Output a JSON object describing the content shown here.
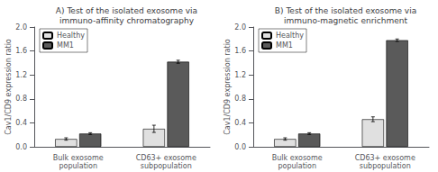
{
  "chart_data": [
    {
      "type": "bar",
      "title": "A) Test of the isolated exosome via\nimmuno-affinity chromatography",
      "categories": [
        "Bulk exosome\npopulation",
        "CD63+ exosome\nsubpopulation"
      ],
      "series": [
        {
          "name": "Healthy",
          "color": "#e0e0e0",
          "values": [
            0.13,
            0.3
          ],
          "errors": [
            0.02,
            0.06
          ]
        },
        {
          "name": "MM1",
          "color": "#5a5a5a",
          "values": [
            0.22,
            1.42
          ],
          "errors": [
            0.015,
            0.025
          ]
        }
      ],
      "ylabel": "Cav1/CD9 expression ratio",
      "ylim": [
        0,
        2.0
      ],
      "yticks": [
        {
          "value": 0.0,
          "label": "0.0"
        },
        0.4,
        0.8,
        1.2,
        1.6,
        {
          "value": 2.0,
          "label": "2.0"
        }
      ],
      "grid": false,
      "legend": "upper left"
    },
    {
      "type": "bar",
      "title": "B) Test of the isolated exosome via\nimmuno-magnetic enrichment",
      "categories": [
        "Bulk exosome\npopulation",
        "CD63+ exosome\nsubpopulation"
      ],
      "series": [
        {
          "name": "Healthy",
          "color": "#e0e0e0",
          "values": [
            0.13,
            0.46
          ],
          "errors": [
            0.02,
            0.04
          ]
        },
        {
          "name": "MM1",
          "color": "#5a5a5a",
          "values": [
            0.22,
            1.78
          ],
          "errors": [
            0.015,
            0.02
          ]
        }
      ],
      "ylabel": "Cav1/CD9 expression ratio",
      "ylim": [
        0,
        2.0
      ],
      "yticks": [
        {
          "value": 0.0,
          "label": "0.0"
        },
        0.4,
        0.8,
        1.2,
        1.6,
        {
          "value": 2.0,
          "label": "2.0"
        }
      ],
      "grid": false,
      "legend": "upper left"
    }
  ]
}
